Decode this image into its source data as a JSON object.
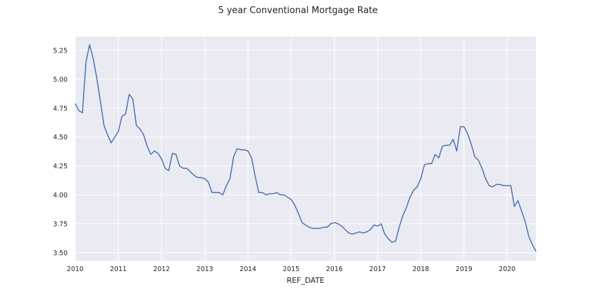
{
  "chart_data": {
    "type": "line",
    "title": "5 year Conventional Mortgage Rate",
    "xlabel": "REF_DATE",
    "ylabel": "",
    "xlim": [
      "2010-01",
      "2020-09"
    ],
    "ylim": [
      3.43,
      5.37
    ],
    "x_ticks": [
      "2010",
      "2011",
      "2012",
      "2013",
      "2014",
      "2015",
      "2016",
      "2017",
      "2018",
      "2019",
      "2020"
    ],
    "y_ticks": [
      "3.50",
      "3.75",
      "4.00",
      "4.25",
      "4.50",
      "4.75",
      "5.00",
      "5.25"
    ],
    "grid": true,
    "background": "#EAEAF2",
    "line_color": "#4C72B0",
    "series": [
      {
        "x": [
          "2010-01",
          "2010-02",
          "2010-03",
          "2010-04",
          "2010-05",
          "2010-06",
          "2010-07",
          "2010-08",
          "2010-09",
          "2010-10",
          "2010-11",
          "2010-12",
          "2011-01",
          "2011-02",
          "2011-03",
          "2011-04",
          "2011-05",
          "2011-06",
          "2011-07",
          "2011-08",
          "2011-09",
          "2011-10",
          "2011-11",
          "2011-12",
          "2012-01",
          "2012-02",
          "2012-03",
          "2012-04",
          "2012-05",
          "2012-06",
          "2012-07",
          "2012-08",
          "2012-09",
          "2012-10",
          "2012-11",
          "2012-12",
          "2013-01",
          "2013-02",
          "2013-03",
          "2013-04",
          "2013-05",
          "2013-06",
          "2013-07",
          "2013-08",
          "2013-09",
          "2013-10",
          "2013-11",
          "2013-12",
          "2014-01",
          "2014-02",
          "2014-03",
          "2014-04",
          "2014-05",
          "2014-06",
          "2014-07",
          "2014-08",
          "2014-09",
          "2014-10",
          "2014-11",
          "2014-12",
          "2015-01",
          "2015-02",
          "2015-03",
          "2015-04",
          "2015-05",
          "2015-06",
          "2015-07",
          "2015-08",
          "2015-09",
          "2015-10",
          "2015-11",
          "2015-12",
          "2016-01",
          "2016-02",
          "2016-03",
          "2016-04",
          "2016-05",
          "2016-06",
          "2016-07",
          "2016-08",
          "2016-09",
          "2016-10",
          "2016-11",
          "2016-12",
          "2017-01",
          "2017-02",
          "2017-03",
          "2017-04",
          "2017-05",
          "2017-06",
          "2017-07",
          "2017-08",
          "2017-09",
          "2017-10",
          "2017-11",
          "2017-12",
          "2018-01",
          "2018-02",
          "2018-03",
          "2018-04",
          "2018-05",
          "2018-06",
          "2018-07",
          "2018-08",
          "2018-09",
          "2018-10",
          "2018-11",
          "2018-12",
          "2019-01",
          "2019-02",
          "2019-03",
          "2019-04",
          "2019-05",
          "2019-06",
          "2019-07",
          "2019-08",
          "2019-09",
          "2019-10",
          "2019-11",
          "2019-12",
          "2020-01",
          "2020-02",
          "2020-03",
          "2020-04",
          "2020-05",
          "2020-06",
          "2020-07",
          "2020-08",
          "2020-09"
        ],
        "values": [
          4.79,
          4.73,
          4.71,
          5.15,
          5.3,
          5.18,
          5.01,
          4.81,
          4.6,
          4.52,
          4.45,
          4.5,
          4.55,
          4.68,
          4.7,
          4.87,
          4.83,
          4.6,
          4.57,
          4.52,
          4.42,
          4.35,
          4.38,
          4.36,
          4.31,
          4.23,
          4.21,
          4.36,
          4.35,
          4.25,
          4.23,
          4.23,
          4.2,
          4.17,
          4.15,
          4.15,
          4.14,
          4.11,
          4.02,
          4.02,
          4.02,
          4.0,
          4.08,
          4.14,
          4.33,
          4.4,
          4.39,
          4.39,
          4.38,
          4.32,
          4.16,
          4.02,
          4.02,
          4.0,
          4.01,
          4.01,
          4.02,
          4.0,
          4.0,
          3.98,
          3.96,
          3.91,
          3.84,
          3.76,
          3.74,
          3.72,
          3.71,
          3.71,
          3.71,
          3.72,
          3.72,
          3.75,
          3.76,
          3.75,
          3.73,
          3.7,
          3.67,
          3.66,
          3.67,
          3.68,
          3.67,
          3.68,
          3.7,
          3.74,
          3.73,
          3.75,
          3.66,
          3.62,
          3.59,
          3.6,
          3.72,
          3.82,
          3.89,
          3.98,
          4.04,
          4.07,
          4.14,
          4.26,
          4.27,
          4.27,
          4.35,
          4.32,
          4.42,
          4.43,
          4.43,
          4.48,
          4.38,
          4.59,
          4.59,
          4.53,
          4.44,
          4.33,
          4.3,
          4.23,
          4.14,
          4.08,
          4.07,
          4.09,
          4.09,
          4.08,
          4.08,
          4.08,
          3.9,
          3.95,
          3.86,
          3.77,
          3.64,
          3.57,
          3.51
        ]
      }
    ]
  }
}
